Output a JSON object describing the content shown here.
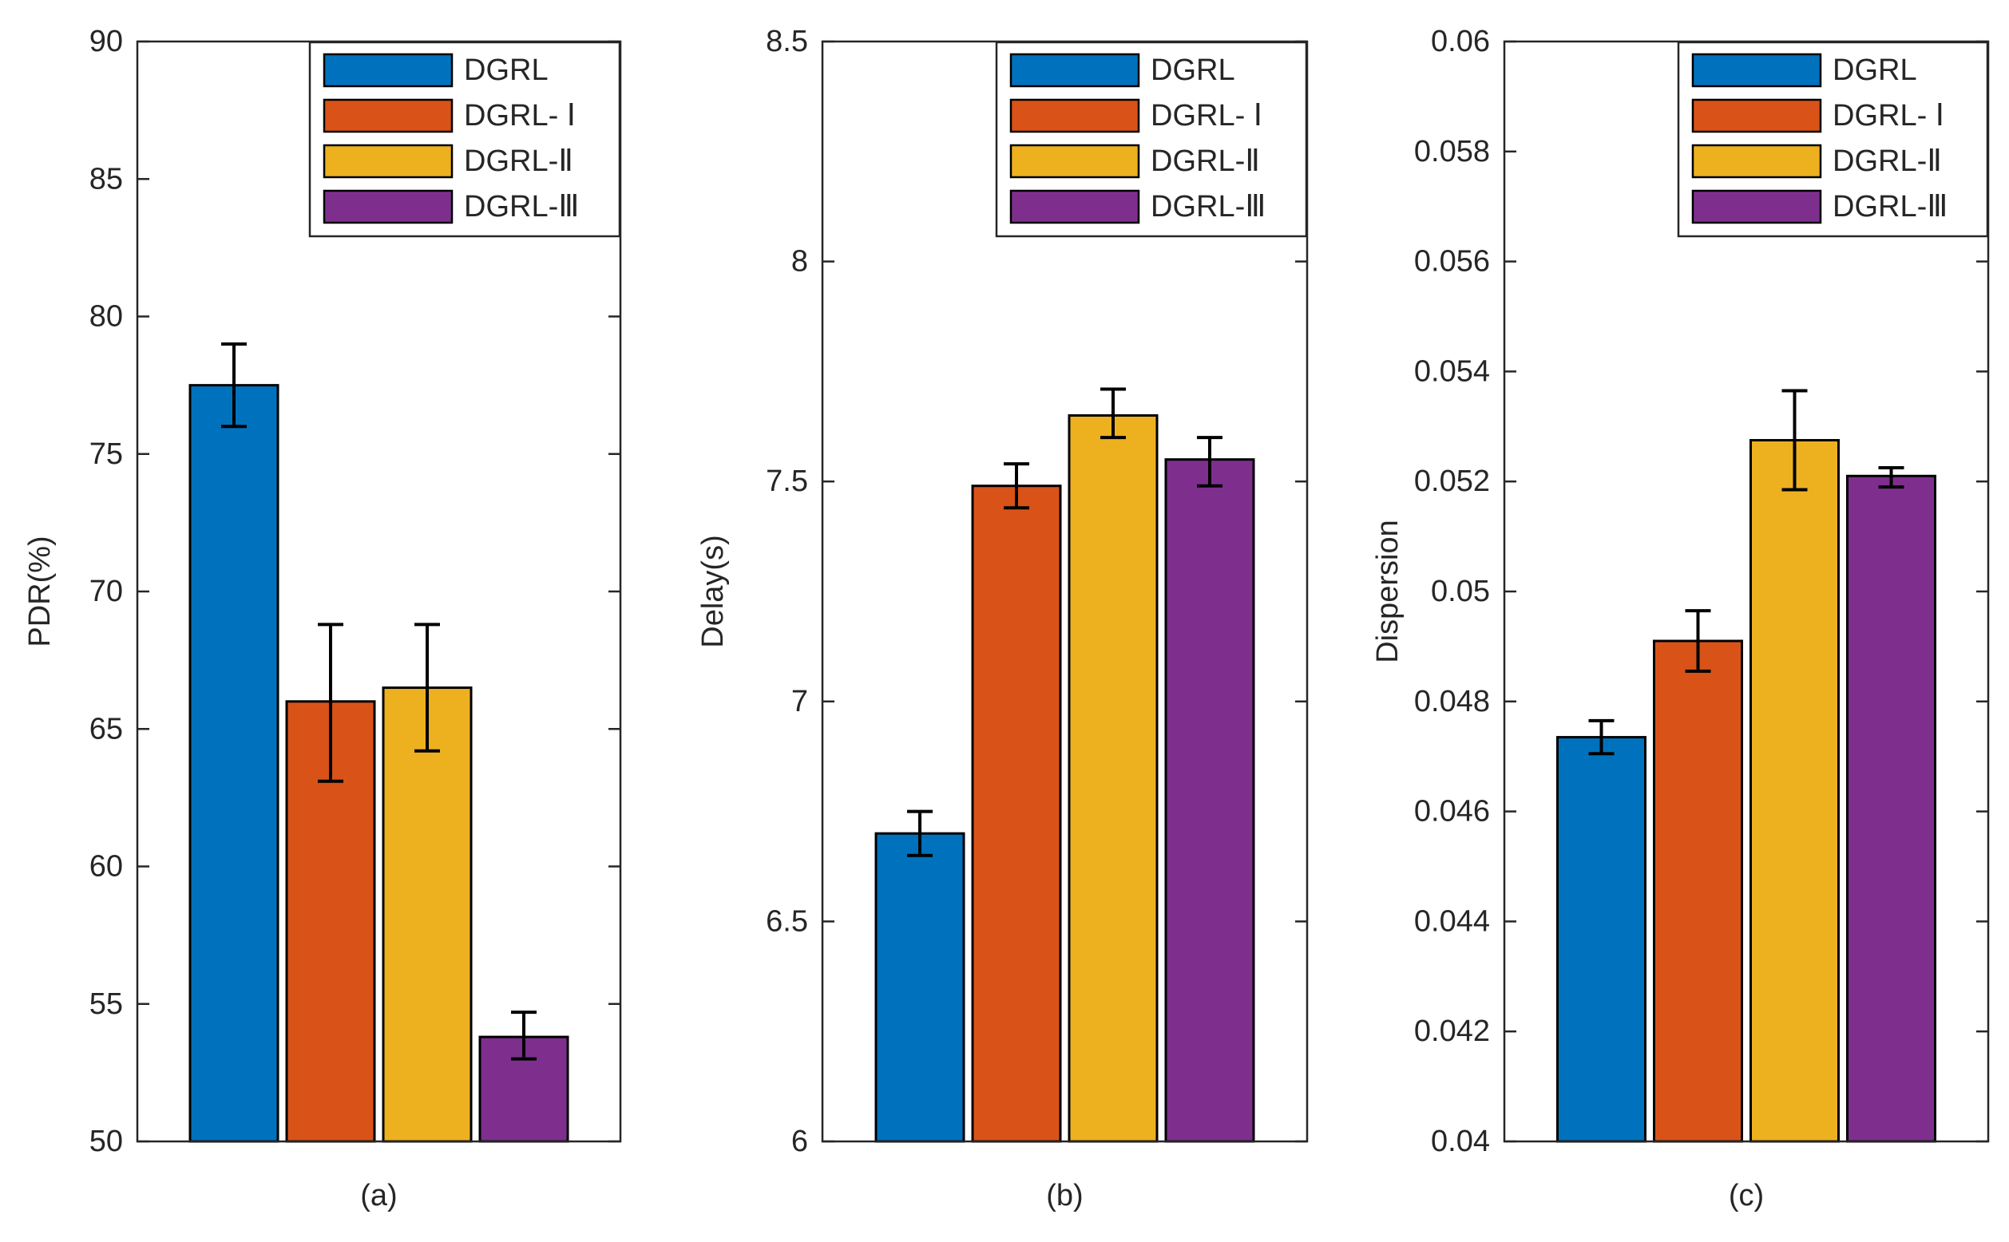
{
  "chart_data": [
    {
      "type": "bar",
      "panel_label": "(a)",
      "ylabel": "PDR(%)",
      "xlabel": "(a)",
      "ylim": [
        50,
        90
      ],
      "yticks": [
        50,
        55,
        60,
        65,
        70,
        75,
        80,
        85,
        90
      ],
      "ytick_labels": [
        "50",
        "55",
        "60",
        "65",
        "70",
        "75",
        "80",
        "85",
        "90"
      ],
      "grid": false,
      "legend_position": "top-right",
      "series": [
        {
          "name": "DGRL",
          "value": 77.5,
          "err_low": 76.0,
          "err_high": 79.0,
          "color": "#0072BD"
        },
        {
          "name": "DGRL- Ⅰ",
          "value": 66.0,
          "err_low": 63.1,
          "err_high": 68.8,
          "color": "#D95319"
        },
        {
          "name": "DGRL-Ⅱ",
          "value": 66.5,
          "err_low": 64.2,
          "err_high": 68.8,
          "color": "#EDB120"
        },
        {
          "name": "DGRL-Ⅲ",
          "value": 53.8,
          "err_low": 53.0,
          "err_high": 54.7,
          "color": "#7E2F8E"
        }
      ]
    },
    {
      "type": "bar",
      "panel_label": "(b)",
      "ylabel": "Delay(s)",
      "xlabel": "(b)",
      "ylim": [
        6,
        8.5
      ],
      "yticks": [
        6,
        6.5,
        7,
        7.5,
        8,
        8.5
      ],
      "ytick_labels": [
        "6",
        "6.5",
        "7",
        "7.5",
        "8",
        "8.5"
      ],
      "grid": false,
      "legend_position": "top-right",
      "series": [
        {
          "name": "DGRL",
          "value": 6.7,
          "err_low": 6.65,
          "err_high": 6.75,
          "color": "#0072BD"
        },
        {
          "name": "DGRL- Ⅰ",
          "value": 7.49,
          "err_low": 7.44,
          "err_high": 7.54,
          "color": "#D95319"
        },
        {
          "name": "DGRL-Ⅱ",
          "value": 7.65,
          "err_low": 7.6,
          "err_high": 7.71,
          "color": "#EDB120"
        },
        {
          "name": "DGRL-Ⅲ",
          "value": 7.55,
          "err_low": 7.49,
          "err_high": 7.6,
          "color": "#7E2F8E"
        }
      ]
    },
    {
      "type": "bar",
      "panel_label": "(c)",
      "ylabel": "Dispersion",
      "xlabel": "(c)",
      "ylim": [
        0.04,
        0.06
      ],
      "yticks": [
        0.04,
        0.042,
        0.044,
        0.046,
        0.048,
        0.05,
        0.052,
        0.054,
        0.056,
        0.058,
        0.06
      ],
      "ytick_labels": [
        "0.04",
        "0.042",
        "0.044",
        "0.046",
        "0.048",
        "0.05",
        "0.052",
        "0.054",
        "0.056",
        "0.058",
        "0.06"
      ],
      "grid": false,
      "legend_position": "top-right",
      "series": [
        {
          "name": "DGRL",
          "value": 0.04735,
          "err_low": 0.04705,
          "err_high": 0.04765,
          "color": "#0072BD"
        },
        {
          "name": "DGRL- Ⅰ",
          "value": 0.0491,
          "err_low": 0.04855,
          "err_high": 0.04965,
          "color": "#D95319"
        },
        {
          "name": "DGRL-Ⅱ",
          "value": 0.05275,
          "err_low": 0.05185,
          "err_high": 0.05365,
          "color": "#EDB120"
        },
        {
          "name": "DGRL-Ⅲ",
          "value": 0.0521,
          "err_low": 0.0519,
          "err_high": 0.05225,
          "color": "#7E2F8E"
        }
      ]
    }
  ]
}
